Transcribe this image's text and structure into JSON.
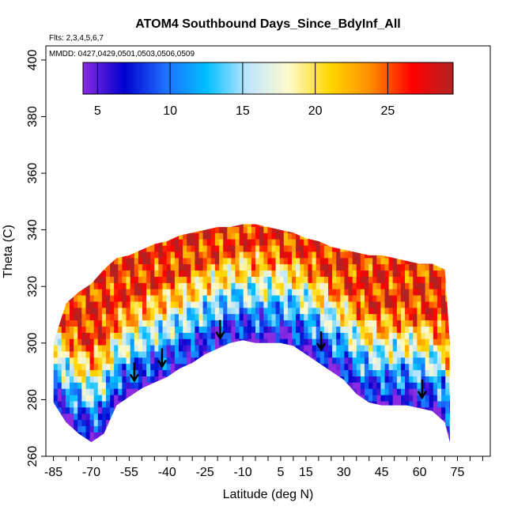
{
  "chart_data": {
    "type": "heatmap",
    "title": "ATOM4 Southbound Days_Since_BdyInf_All",
    "flights_note": "Flts: 2,3,4,5,6,7",
    "mmdd_note": "MMDD: 0427,0429,0501,0503,0506,0509",
    "xlabel": "Latitude (deg N)",
    "ylabel": "Theta (C)",
    "xlim": [
      -88,
      88
    ],
    "ylim": [
      260,
      405
    ],
    "x_ticks": [
      -85,
      -70,
      -55,
      -40,
      -25,
      -10,
      5,
      15,
      30,
      45,
      60,
      75
    ],
    "x_minor_step": 5,
    "y_ticks": [
      260,
      280,
      300,
      320,
      340,
      360,
      380,
      400
    ],
    "colorbar": {
      "min": 4,
      "max": 29.5,
      "ticks": [
        5,
        10,
        15,
        20,
        25
      ],
      "colors": [
        "#8a2be2",
        "#0000cd",
        "#1e6fff",
        "#00bfff",
        "#bfe6ff",
        "#fffacd",
        "#ffd700",
        "#ff8c00",
        "#ff0000",
        "#b22222"
      ]
    },
    "envelope": {
      "lat": [
        -85,
        -80,
        -75,
        -70,
        -65,
        -60,
        -55,
        -50,
        -45,
        -40,
        -35,
        -30,
        -25,
        -20,
        -15,
        -10,
        -5,
        0,
        5,
        10,
        15,
        20,
        25,
        30,
        35,
        40,
        45,
        50,
        55,
        60,
        65,
        70,
        72
      ],
      "top_theta": [
        300,
        314,
        318,
        321,
        326,
        330,
        331,
        333,
        335,
        336,
        338,
        339,
        340,
        341,
        341,
        342,
        342,
        341,
        340,
        339,
        337,
        336,
        334,
        333,
        332,
        331,
        331,
        330,
        329,
        328,
        328,
        326,
        300
      ],
      "bottom_theta": [
        279,
        272,
        268,
        265,
        268,
        278,
        281,
        284,
        286,
        288,
        291,
        293,
        296,
        298,
        300,
        301,
        300,
        300,
        300,
        299,
        296,
        293,
        290,
        287,
        282,
        279,
        278,
        278,
        278,
        277,
        276,
        272,
        265
      ]
    },
    "profile_arrows": [
      {
        "lat": -53,
        "theta": 287
      },
      {
        "lat": -42,
        "theta": 292
      },
      {
        "lat": -19,
        "theta": 302
      },
      {
        "lat": 21,
        "theta": 298
      },
      {
        "lat": 61,
        "theta": 281
      }
    ]
  }
}
